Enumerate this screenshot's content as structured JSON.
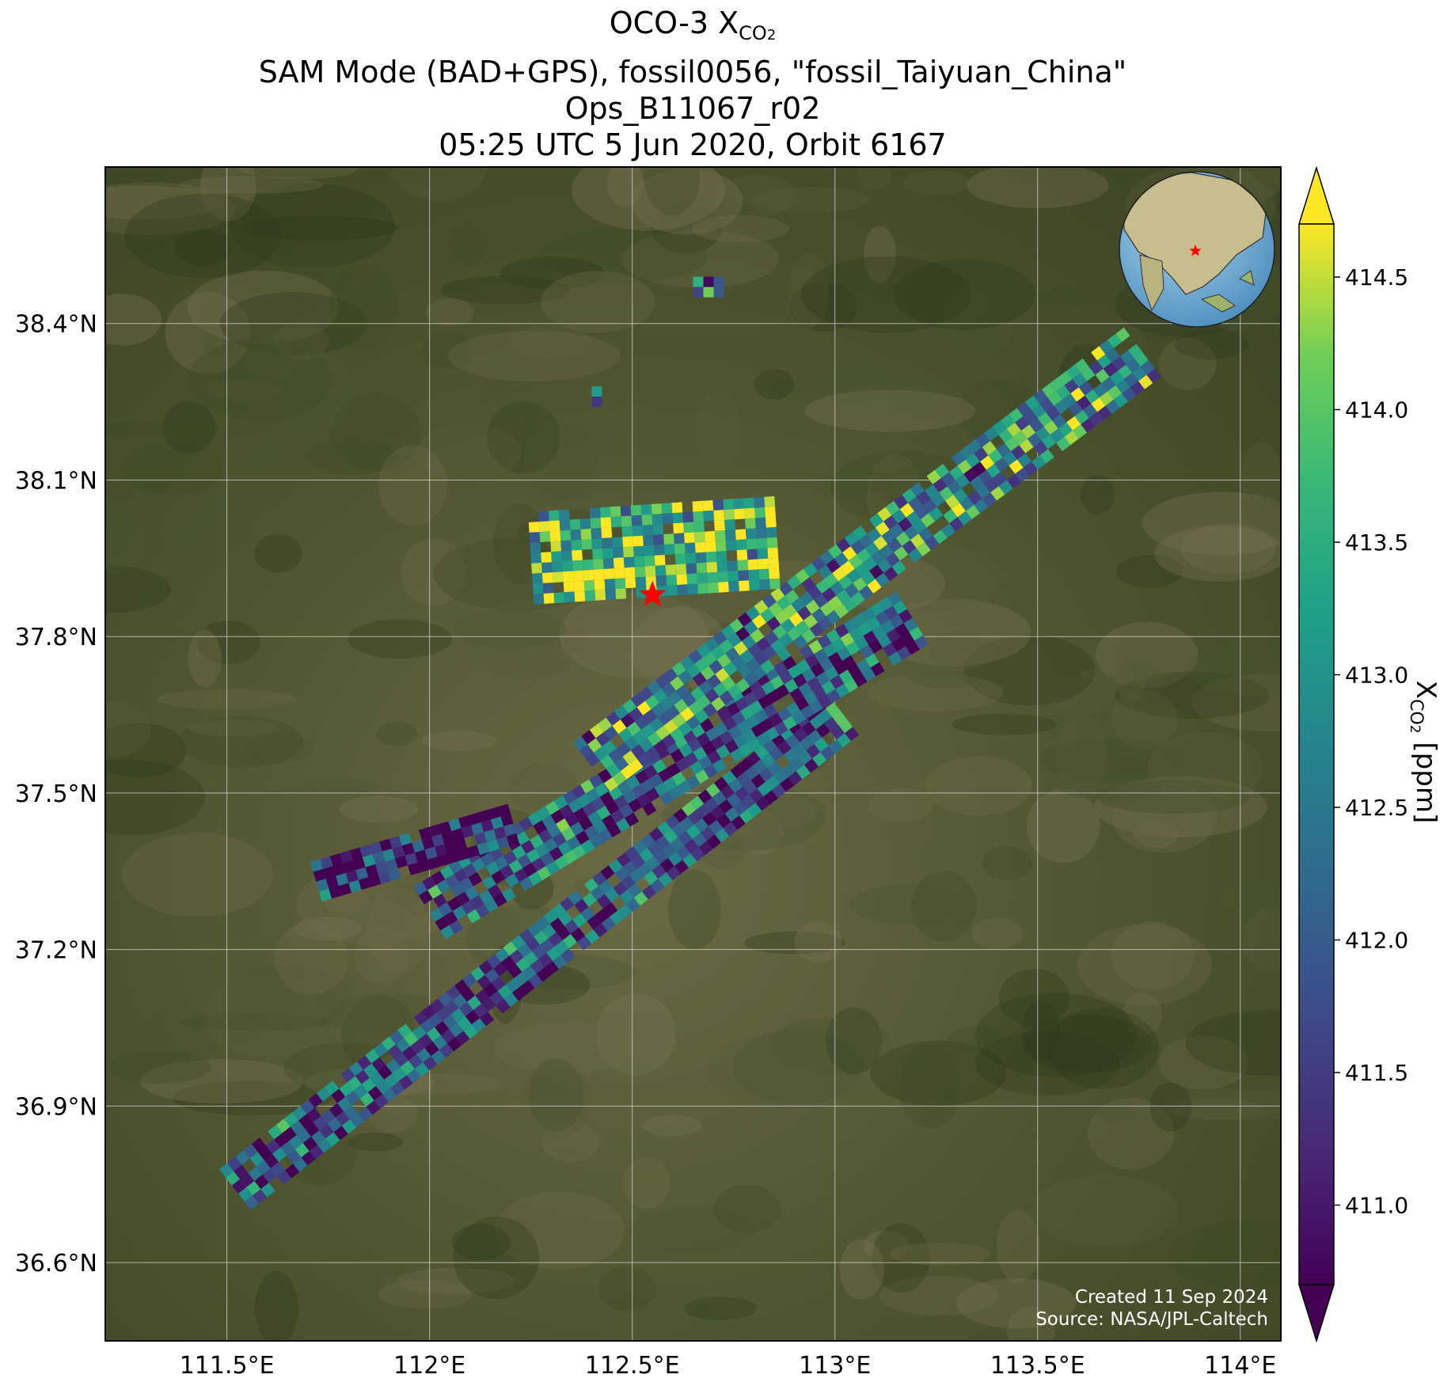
{
  "title": {
    "line1_prefix": "OCO-3 X",
    "line1_sub": "CO",
    "line1_sub2": "2",
    "line2": "SAM Mode (BAD+GPS), fossil0056, \"fossil_Taiyuan_China\"",
    "line3": "Ops_B11067_r02",
    "line4": "05:25 UTC 5 Jun 2020, Orbit 6167"
  },
  "map": {
    "lon_range": [
      111.2,
      114.1
    ],
    "lat_range": [
      36.45,
      38.7
    ],
    "lon_ticks": [
      111.5,
      112.0,
      112.5,
      113.0,
      113.5,
      114.0
    ],
    "lon_tick_labels": [
      "111.5°E",
      "112°E",
      "112.5°E",
      "113°E",
      "113.5°E",
      "114°E"
    ],
    "lat_ticks": [
      36.6,
      36.9,
      37.2,
      37.5,
      37.8,
      38.1,
      38.4
    ],
    "lat_tick_labels": [
      "36.6°N",
      "36.9°N",
      "37.2°N",
      "37.5°N",
      "37.8°N",
      "38.1°N",
      "38.4°N"
    ],
    "grid": true,
    "target": {
      "name": "fossil_Taiyuan_China",
      "lon": 112.55,
      "lat": 37.88,
      "marker": "star",
      "color": "#ff0000"
    },
    "inset_globe": {
      "placement": "top-right",
      "marker_color": "#ff0000"
    }
  },
  "chart_data": {
    "type": "heatmap",
    "title": "OCO-3 XCO2",
    "colormap": "viridis",
    "extend": "both",
    "colorbar": {
      "label": "X",
      "label_sub": "CO",
      "label_sub2": "2",
      "label_units": " [ppm]",
      "range": [
        410.7,
        414.7
      ],
      "ticks": [
        411.0,
        411.5,
        412.0,
        412.5,
        413.0,
        413.5,
        414.0,
        414.5
      ],
      "tick_labels": [
        "411.0",
        "411.5",
        "412.0",
        "412.5",
        "413.0",
        "413.5",
        "414.0",
        "414.5"
      ]
    },
    "swaths": [
      {
        "name": "swath-lower",
        "start": [
          111.52,
          36.74
        ],
        "end": [
          113.02,
          37.65
        ],
        "width_lon": 0.13,
        "mean": 411.9
      },
      {
        "name": "swath-middle",
        "start": [
          112.0,
          37.27
        ],
        "end": [
          113.2,
          37.84
        ],
        "width_lon": 0.15,
        "mean": 412.0
      },
      {
        "name": "swath-upper",
        "start": [
          112.4,
          37.55
        ],
        "end": [
          113.75,
          38.34
        ],
        "width_lon": 0.14,
        "mean": 412.9
      },
      {
        "name": "swath-west",
        "start": [
          111.72,
          37.33
        ],
        "end": [
          112.2,
          37.44
        ],
        "width_lon": 0.09,
        "mean": 411.1
      },
      {
        "name": "cluster-taiyuan",
        "start": [
          112.25,
          37.95
        ],
        "end": [
          112.85,
          37.98
        ],
        "width_lon": 0.22,
        "mean": 413.8
      },
      {
        "name": "patch-north",
        "start": [
          112.4,
          38.26
        ],
        "end": [
          112.43,
          38.26
        ],
        "width_lon": 0.05,
        "mean": 412.2
      },
      {
        "name": "patch-far-north",
        "start": [
          112.65,
          38.47
        ],
        "end": [
          112.72,
          38.47
        ],
        "width_lon": 0.04,
        "mean": 413.0
      }
    ]
  },
  "credit": {
    "line1": "Created 11 Sep 2024",
    "line2": "Source: NASA/JPL-Caltech"
  }
}
